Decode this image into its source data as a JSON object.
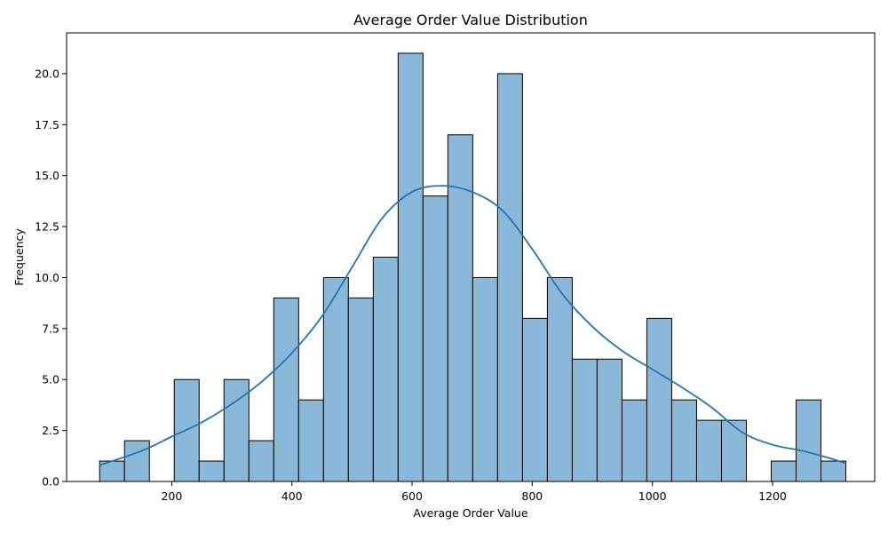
{
  "chart_data": {
    "type": "bar",
    "title": "Average Order Value Distribution",
    "xlabel": "Average Order Value",
    "ylabel": "Frequency",
    "xlim": [
      25,
      1370
    ],
    "ylim": [
      0,
      22
    ],
    "grid": false,
    "bin_start": 80,
    "bin_width": 41.4,
    "values": [
      1,
      2,
      0,
      5,
      1,
      5,
      2,
      9,
      4,
      10,
      9,
      11,
      21,
      14,
      17,
      10,
      20,
      8,
      10,
      6,
      6,
      4,
      8,
      4,
      3,
      3,
      0,
      1,
      4,
      1
    ],
    "x_ticks": [
      200,
      400,
      600,
      800,
      1000,
      1200
    ],
    "y_ticks": [
      0,
      2.5,
      5,
      7.5,
      10,
      12.5,
      15,
      17.5,
      20
    ],
    "x_tick_labels": [
      "200",
      "400",
      "600",
      "800",
      "1000",
      "1200"
    ],
    "y_tick_labels": [
      "0.0",
      "2.5",
      "5.0",
      "7.5",
      "10.0",
      "12.5",
      "15.0",
      "17.5",
      "20.0"
    ],
    "kde": {
      "x": [
        80,
        150,
        200,
        250,
        300,
        350,
        400,
        450,
        500,
        550,
        600,
        650,
        700,
        750,
        800,
        850,
        900,
        950,
        1000,
        1050,
        1100,
        1150,
        1200,
        1250,
        1300,
        1320
      ],
      "y": [
        0.8,
        1.5,
        2.2,
        2.9,
        3.8,
        4.9,
        6.3,
        8.1,
        10.5,
        12.9,
        14.2,
        14.5,
        14.2,
        13.3,
        11.4,
        9.2,
        7.6,
        6.4,
        5.5,
        4.6,
        3.6,
        2.4,
        1.8,
        1.5,
        1.1,
        0.9
      ],
      "color": "#1f77b4"
    },
    "bar_color": "#8ab8d9"
  }
}
